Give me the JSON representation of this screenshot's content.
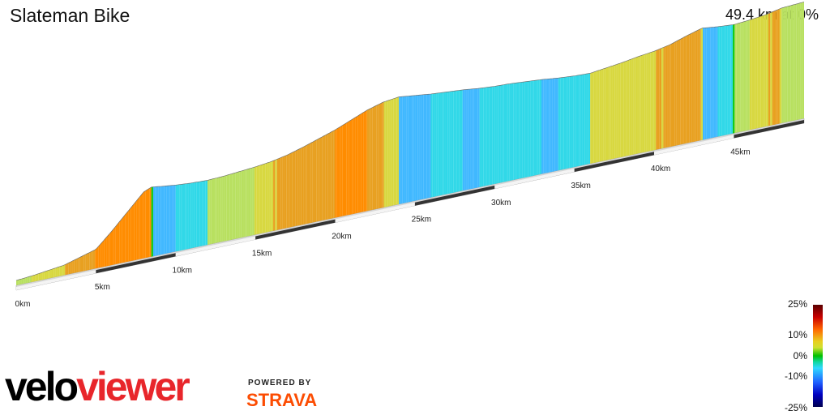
{
  "header": {
    "title": "Slateman Bike",
    "stats": "49.4 km at 0%"
  },
  "chart_data": {
    "type": "area",
    "title": "Slateman Bike",
    "xlabel": "",
    "ylabel": "",
    "distance_km": 49.4,
    "x_ticks": [
      "0km",
      "5km",
      "10km",
      "15km",
      "20km",
      "25km",
      "30km",
      "35km",
      "40km",
      "45km"
    ],
    "x": [
      0,
      1,
      2,
      3,
      4,
      5,
      6,
      7,
      8,
      8.5,
      9,
      10,
      11,
      12,
      13,
      14,
      15,
      16,
      17,
      18,
      19,
      20,
      21,
      22,
      23,
      24,
      25,
      26,
      27,
      28,
      29,
      30,
      31,
      32,
      33,
      34,
      35,
      36,
      37,
      38,
      39,
      40,
      41,
      42,
      43,
      44,
      45,
      46,
      47,
      48,
      49.4
    ],
    "elevation_rel": [
      0,
      0.02,
      0.05,
      0.08,
      0.15,
      0.22,
      0.45,
      0.7,
      0.95,
      1.0,
      0.98,
      0.95,
      0.93,
      0.92,
      0.93,
      0.95,
      0.97,
      1.0,
      1.05,
      1.12,
      1.2,
      1.28,
      1.38,
      1.48,
      1.55,
      1.58,
      1.55,
      1.52,
      1.5,
      1.48,
      1.45,
      1.43,
      1.42,
      1.4,
      1.38,
      1.35,
      1.33,
      1.32,
      1.35,
      1.38,
      1.42,
      1.45,
      1.5,
      1.58,
      1.65,
      1.62,
      1.6,
      1.62,
      1.65,
      1.7,
      1.72
    ],
    "gradient_scale": {
      "labels": [
        "25%",
        "10%",
        "0%",
        "-10%",
        "-25%"
      ],
      "min": -25,
      "max": 25
    }
  },
  "branding": {
    "logo_part1": "velo",
    "logo_part2": "viewer",
    "powered_by": "POWERED BY",
    "strava": "STRAVA"
  }
}
